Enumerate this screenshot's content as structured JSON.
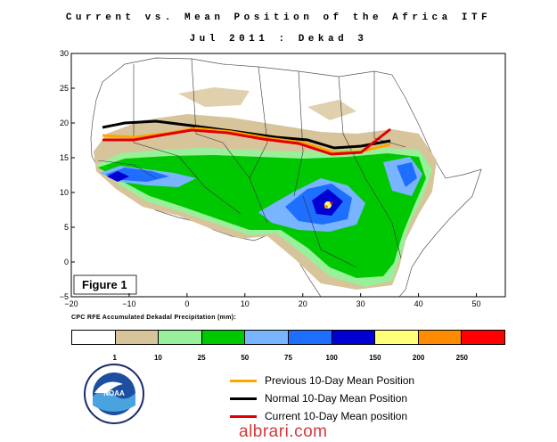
{
  "title": "Current vs. Mean Position of the Africa ITF",
  "subtitle": "Jul 2011 : Dekad 3",
  "figure_label": "Figure 1",
  "map": {
    "x_ticks": [
      "−20",
      "−10",
      "0",
      "10",
      "20",
      "30",
      "40",
      "50"
    ],
    "y_ticks": [
      "30",
      "25",
      "20",
      "15",
      "10",
      "5",
      "0",
      "−5"
    ],
    "lon_range": [
      -20,
      55
    ],
    "lat_range": [
      -5,
      30
    ]
  },
  "colorbar": {
    "title": "CPC RFE Accumulated Dekadal Precipitation (mm):",
    "tick_labels": [
      "1",
      "10",
      "25",
      "50",
      "75",
      "100",
      "150",
      "200",
      "250"
    ],
    "colors": [
      "#ffffff",
      "#d8c49a",
      "#98f09a",
      "#00c800",
      "#78b4ff",
      "#1e6eff",
      "#0000d2",
      "#ffff78",
      "#ff8c00",
      "#ff0000"
    ]
  },
  "legend": [
    {
      "label": "Previous 10-Day Mean Position",
      "color": "#ffa500"
    },
    {
      "label": "Normal 10-Day Mean Position",
      "color": "#000000"
    },
    {
      "label": "Current 10-Day Mean position",
      "color": "#e00000"
    }
  ],
  "logo": {
    "text": "NOAA",
    "ring_text": "NATIONAL OCEANIC AND ATMOSPHERIC ADMINISTRATION · U.S. DEPARTMENT OF COMMERCE"
  },
  "watermark": "albrari.com"
}
